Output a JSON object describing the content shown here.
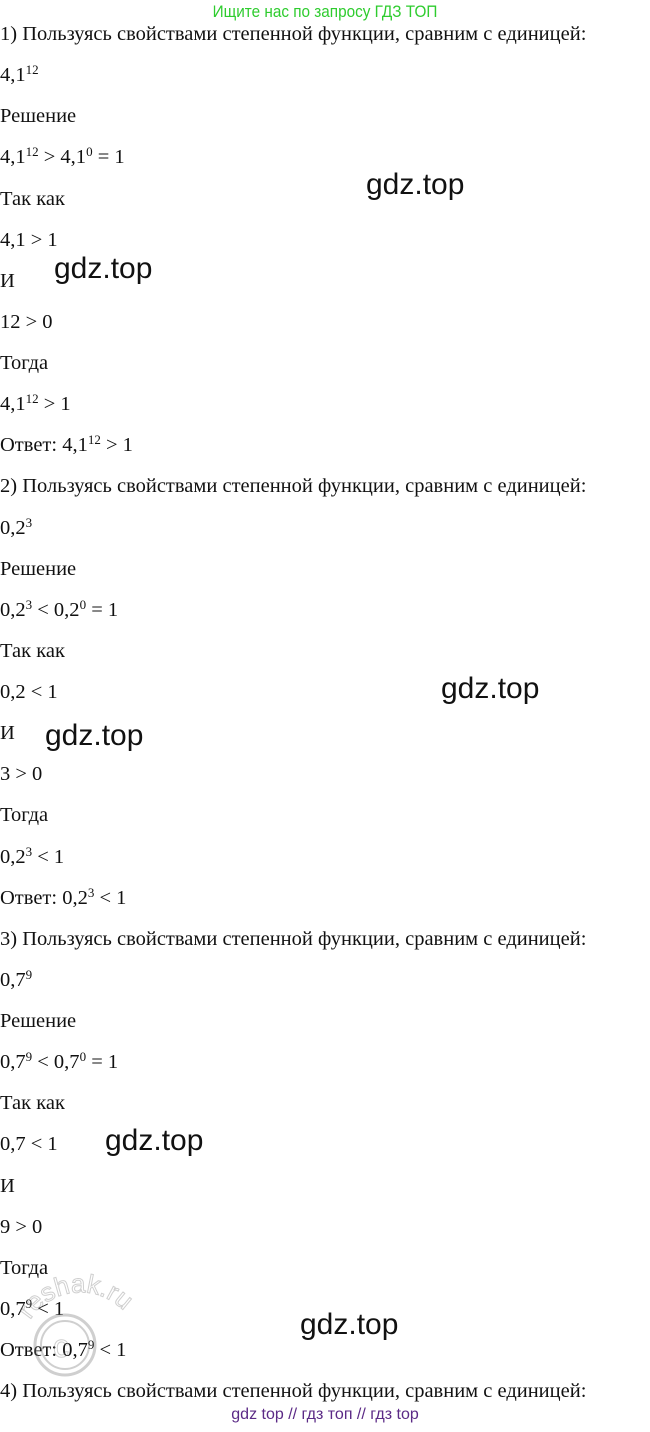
{
  "banner": "Ищите нас по запросу ГДЗ ТОП",
  "lines": [
    [
      [
        "1) Пользуясь свойствами степенной функции, сравним с единицей:"
      ]
    ],
    [
      [
        "4,1"
      ],
      [
        "12",
        1
      ]
    ],
    [
      [
        "Решение"
      ]
    ],
    [
      [
        "4,1"
      ],
      [
        "12",
        1
      ],
      [
        " > 4,1"
      ],
      [
        "0",
        1
      ],
      [
        " = 1"
      ]
    ],
    [
      [
        "Так как"
      ]
    ],
    [
      [
        "4,1 > 1"
      ]
    ],
    [
      [
        "И"
      ]
    ],
    [
      [
        "12 > 0"
      ]
    ],
    [
      [
        "Тогда"
      ]
    ],
    [
      [
        "4,1"
      ],
      [
        "12",
        1
      ],
      [
        " > 1"
      ]
    ],
    [
      [
        "Ответ: 4,1"
      ],
      [
        "12",
        1
      ],
      [
        " > 1"
      ]
    ],
    [
      [
        "2) Пользуясь свойствами степенной функции, сравним с единицей:"
      ]
    ],
    [
      [
        "0,2"
      ],
      [
        "3",
        1
      ]
    ],
    [
      [
        "Решение"
      ]
    ],
    [
      [
        "0,2"
      ],
      [
        "3",
        1
      ],
      [
        " < 0,2"
      ],
      [
        "0",
        1
      ],
      [
        " = 1"
      ]
    ],
    [
      [
        "Так как"
      ]
    ],
    [
      [
        "0,2 < 1"
      ]
    ],
    [
      [
        "И"
      ]
    ],
    [
      [
        "3 > 0"
      ]
    ],
    [
      [
        "Тогда"
      ]
    ],
    [
      [
        "0,2"
      ],
      [
        "3",
        1
      ],
      [
        " < 1"
      ]
    ],
    [
      [
        "Ответ: 0,2"
      ],
      [
        "3",
        1
      ],
      [
        " < 1"
      ]
    ],
    [
      [
        "3) Пользуясь свойствами степенной функции, сравним с единицей:"
      ]
    ],
    [
      [
        "0,7"
      ],
      [
        "9",
        1
      ]
    ],
    [
      [
        "Решение"
      ]
    ],
    [
      [
        "0,7"
      ],
      [
        "9",
        1
      ],
      [
        " < 0,7"
      ],
      [
        "0",
        1
      ],
      [
        " = 1"
      ]
    ],
    [
      [
        "Так как"
      ]
    ],
    [
      [
        "0,7 < 1"
      ]
    ],
    [
      [
        "И"
      ]
    ],
    [
      [
        "9 > 0"
      ]
    ],
    [
      [
        "Тогда"
      ]
    ],
    [
      [
        "0,7"
      ],
      [
        "9",
        1
      ],
      [
        " < 1"
      ]
    ],
    [
      [
        "Ответ: 0,7"
      ],
      [
        "9",
        1
      ],
      [
        " < 1"
      ]
    ],
    [
      [
        "4) Пользуясь свойствами степенной функции, сравним с единицей:"
      ]
    ]
  ],
  "watermarks": [
    "gdz.top",
    "gdz.top",
    "gdz.top",
    "gdz.top",
    "gdz.top",
    "gdz.top"
  ],
  "reshak_logo": "reshak.ru",
  "footer": "gdz top  //  гдз топ  //  гдз top"
}
